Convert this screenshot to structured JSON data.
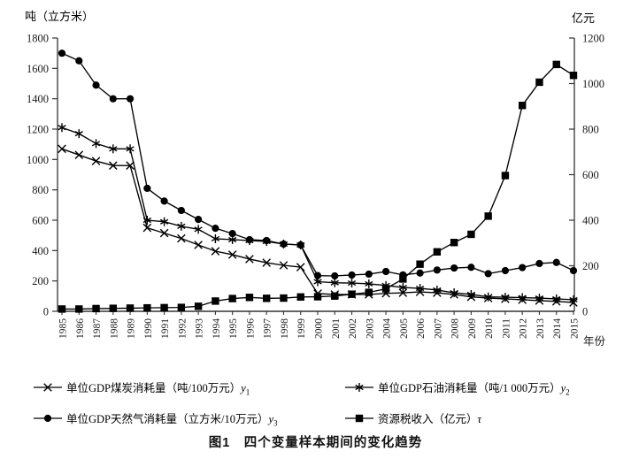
{
  "page": {
    "caption": "图1　四个变量样本期间的变化趋势"
  },
  "colors": {
    "line": "#000000",
    "axis": "#333333",
    "text": "#1a1a1a"
  },
  "chart_data": {
    "type": "line",
    "title": "图1 四个变量样本期间的变化趋势",
    "grid": false,
    "legend_position": "bottom-two-columns",
    "left_axis": {
      "unit_label": "吨（立方米）",
      "min": 0,
      "max": 1800,
      "ticks": [
        0,
        200,
        400,
        600,
        800,
        1000,
        1200,
        1400,
        1600,
        1800
      ]
    },
    "right_axis": {
      "unit_label": "亿元",
      "min": 0,
      "max": 1200,
      "ticks": [
        0,
        200,
        400,
        600,
        800,
        1000,
        1200
      ]
    },
    "x_axis": {
      "label": "年份",
      "years": [
        1985,
        1986,
        1987,
        1988,
        1989,
        1990,
        1991,
        1992,
        1993,
        1994,
        1995,
        1996,
        1997,
        1998,
        1999,
        2000,
        2001,
        2002,
        2003,
        2004,
        2005,
        2006,
        2007,
        2008,
        2009,
        2010,
        2011,
        2012,
        2013,
        2014,
        2015
      ]
    },
    "series": [
      {
        "label": "单位GDP煤炭消耗量（吨/100万元）",
        "symbol": "y",
        "symbol_sub": "1",
        "marker": "x",
        "axis": "left",
        "values": [
          1070,
          1030,
          990,
          960,
          960,
          550,
          515,
          480,
          437,
          396,
          373,
          344,
          320,
          303,
          291,
          117,
          111,
          111,
          111,
          118,
          122,
          128,
          122,
          111,
          95,
          87,
          82,
          76,
          70,
          65,
          58
        ]
      },
      {
        "label": "单位GDP石油消耗量（吨/1 000万元）",
        "symbol": "y",
        "symbol_sub": "2",
        "marker": "asterisk",
        "axis": "left",
        "values": [
          1210,
          1170,
          1105,
          1070,
          1070,
          600,
          590,
          560,
          540,
          478,
          472,
          466,
          460,
          443,
          437,
          195,
          188,
          186,
          181,
          170,
          157,
          151,
          140,
          122,
          111,
          95,
          93,
          90,
          87,
          82,
          76
        ]
      },
      {
        "label": "单位GDP天然气消耗量（立方米/10万元）",
        "symbol": "y",
        "symbol_sub": "3",
        "marker": "circle",
        "axis": "left",
        "values": [
          1700,
          1650,
          1490,
          1400,
          1400,
          810,
          726,
          664,
          605,
          547,
          512,
          472,
          466,
          443,
          437,
          235,
          233,
          239,
          245,
          262,
          240,
          252,
          272,
          285,
          290,
          248,
          268,
          288,
          315,
          322,
          268
        ]
      },
      {
        "label": "资源税收入（亿元）",
        "symbol": "τ",
        "symbol_sub": "",
        "marker": "square",
        "axis": "right",
        "values": [
          10,
          10,
          12,
          13,
          14,
          15,
          16,
          17,
          22,
          45,
          56,
          61,
          57,
          58,
          63,
          64,
          67,
          75,
          83,
          99,
          142,
          207,
          261,
          302,
          338,
          418,
          596,
          904,
          1006,
          1084,
          1036
        ]
      }
    ]
  }
}
